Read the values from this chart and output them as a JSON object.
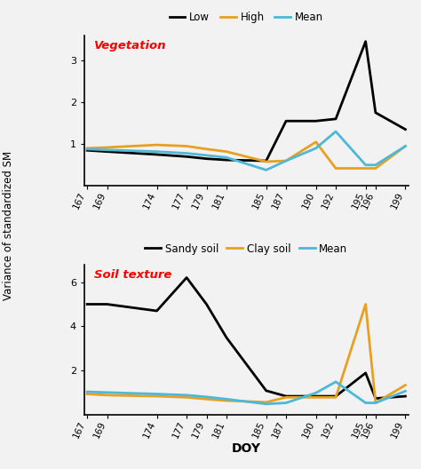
{
  "x_ticks": [
    167,
    169,
    174,
    177,
    179,
    181,
    185,
    187,
    190,
    192,
    195,
    196,
    199
  ],
  "veg": {
    "title": "Vegetation",
    "legend": [
      "Low",
      "High",
      "Mean"
    ],
    "colors": [
      "#000000",
      "#E8A020",
      "#4DB8D8"
    ],
    "low": [
      0.85,
      0.82,
      0.75,
      0.7,
      0.65,
      0.62,
      0.6,
      1.55,
      1.55,
      1.6,
      3.45,
      1.75,
      1.35
    ],
    "high": [
      0.9,
      0.92,
      0.98,
      0.95,
      0.88,
      0.82,
      0.58,
      0.6,
      1.05,
      0.42,
      0.42,
      0.42,
      0.95
    ],
    "mean": [
      0.88,
      0.86,
      0.82,
      0.78,
      0.73,
      0.68,
      0.38,
      0.6,
      0.9,
      1.3,
      0.5,
      0.5,
      0.95
    ],
    "ylim": [
      0,
      3.6
    ],
    "yticks": [
      1,
      2,
      3
    ]
  },
  "soil": {
    "title": "Soil texture",
    "legend": [
      "Sandy soil",
      "Clay soil",
      "Mean"
    ],
    "colors": [
      "#000000",
      "#E8A020",
      "#4DB8D8"
    ],
    "sandy": [
      5.0,
      5.0,
      4.7,
      6.2,
      5.0,
      3.5,
      1.1,
      0.85,
      0.85,
      0.85,
      1.9,
      0.75,
      0.85
    ],
    "clay": [
      0.95,
      0.9,
      0.85,
      0.8,
      0.72,
      0.65,
      0.58,
      0.8,
      0.8,
      0.8,
      5.0,
      0.55,
      1.35
    ],
    "mean": [
      1.05,
      1.02,
      0.95,
      0.9,
      0.82,
      0.72,
      0.5,
      0.55,
      1.0,
      1.5,
      0.55,
      0.55,
      1.08
    ],
    "ylim": [
      0,
      6.8
    ],
    "yticks": [
      2,
      4,
      6
    ]
  },
  "ylabel": "Variance of standardized SM",
  "xlabel": "DOY",
  "linewidth": 2.0,
  "background_color": "#f2f2f2"
}
